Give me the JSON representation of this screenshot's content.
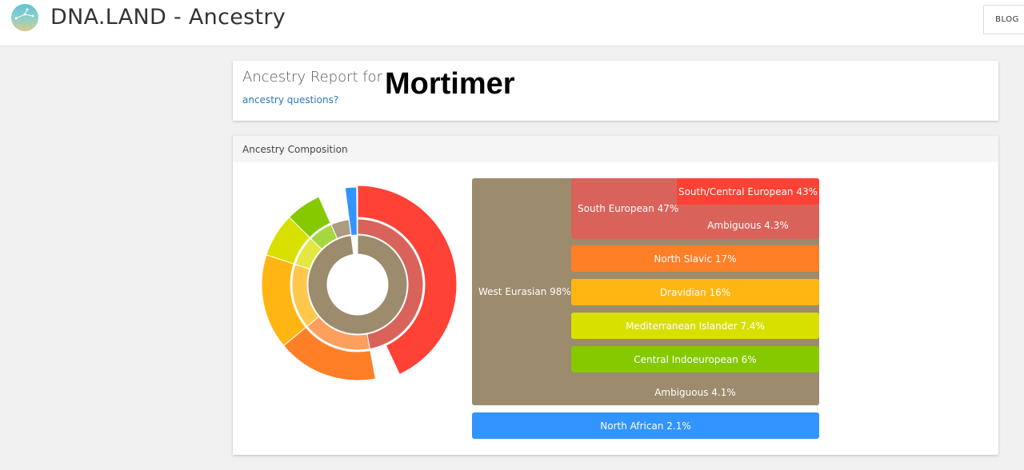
{
  "header": {
    "app_title": "DNA.LAND - Ancestry",
    "blog_label": "BLOG",
    "logo_icon": "dna-land-logo-icon"
  },
  "report": {
    "label": "Ancestry Report for",
    "questions_link": "ancestry questions?",
    "name": "Mortimer"
  },
  "composition": {
    "title": "Ancestry Composition",
    "colors": {
      "west_eurasian": "#9c8b6c",
      "south_european": "#d9635a",
      "south_central_european": "#ff4136",
      "north_slavic": "#ff7f27",
      "dravidian": "#ffb612",
      "mediterranean_islander": "#d8e000",
      "central_indoeuropean": "#85c900",
      "north_african": "#3294ff"
    },
    "bars": {
      "west_eurasian": "West Eurasian 98%",
      "south_european": "South European 47%",
      "south_central_european": "South/Central European 43%",
      "ambiguous_south": "Ambiguous 4.3%",
      "north_slavic": "North Slavic 17%",
      "dravidian": "Dravidian 16%",
      "mediterranean_islander": "Mediterranean Islander 7.4%",
      "central_indoeuropean": "Central Indoeuropean 6%",
      "ambiguous_west": "Ambiguous 4.1%",
      "north_african": "North African 2.1%"
    }
  }
}
